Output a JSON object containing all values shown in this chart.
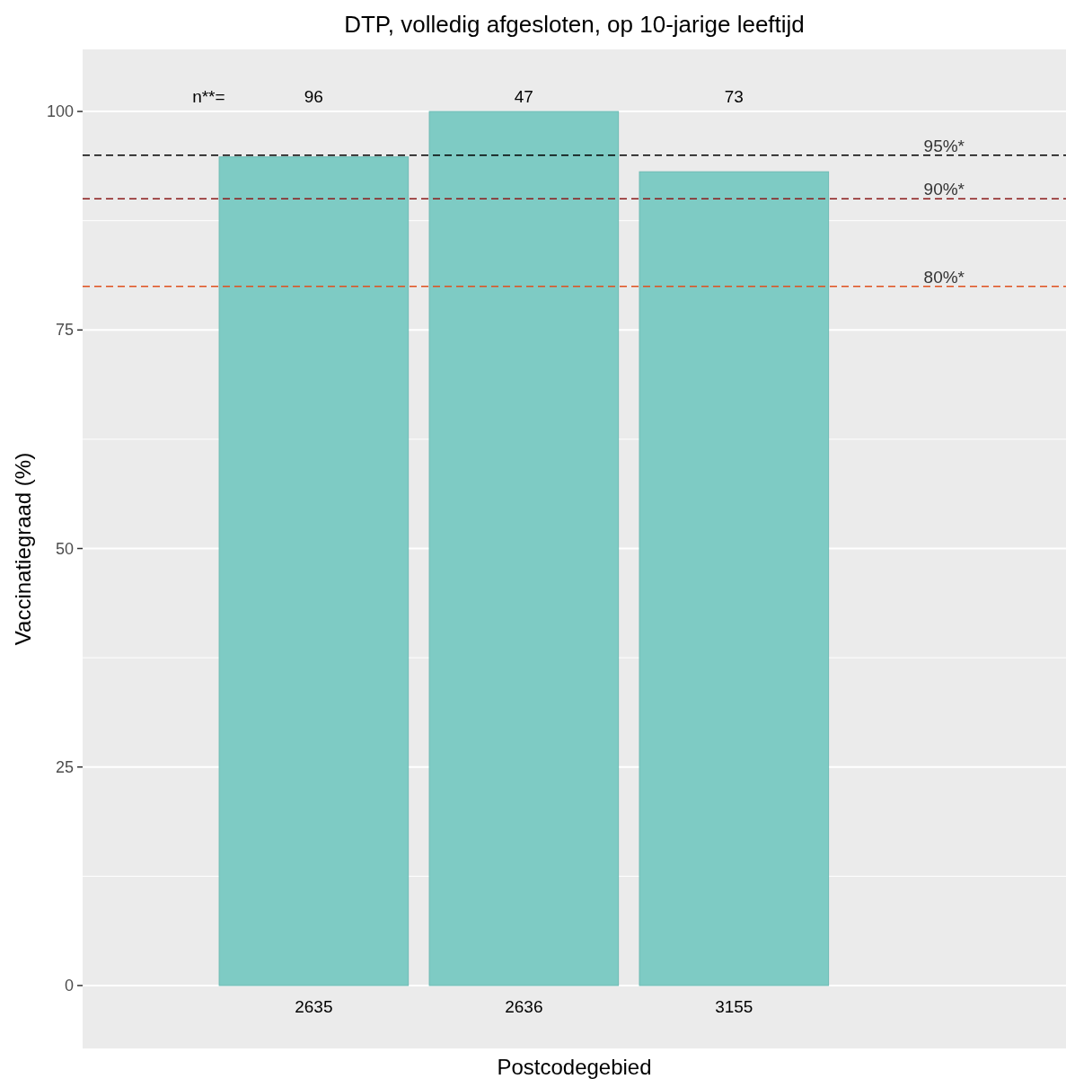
{
  "chart_data": {
    "type": "bar",
    "title": "DTP, volledig afgesloten, op 10-jarige leeftijd",
    "xlabel": "Postcodegebied",
    "ylabel": "Vaccinatiegraad (%)",
    "categories": [
      "2635",
      "2636",
      "3155",
      null
    ],
    "values": [
      94.8,
      100,
      93.1,
      null
    ],
    "color": "#7ecbc4",
    "ylim": [
      -7.2,
      107.1
    ],
    "yticks": [
      0,
      25,
      50,
      75,
      100
    ],
    "grid": "y",
    "ref_lines": [
      {
        "axis": "y",
        "value": 95,
        "label": "95%*",
        "color": "#000000",
        "line_style": "dashed"
      },
      {
        "axis": "y",
        "value": 90,
        "label": "90%*",
        "color": "#8b1a1a",
        "line_style": "dashed"
      },
      {
        "axis": "y",
        "value": 80,
        "label": "80%*",
        "color": "#e0501e",
        "line_style": "dashed"
      }
    ],
    "annotations": [
      "n**=",
      "96",
      "47",
      "73"
    ]
  }
}
